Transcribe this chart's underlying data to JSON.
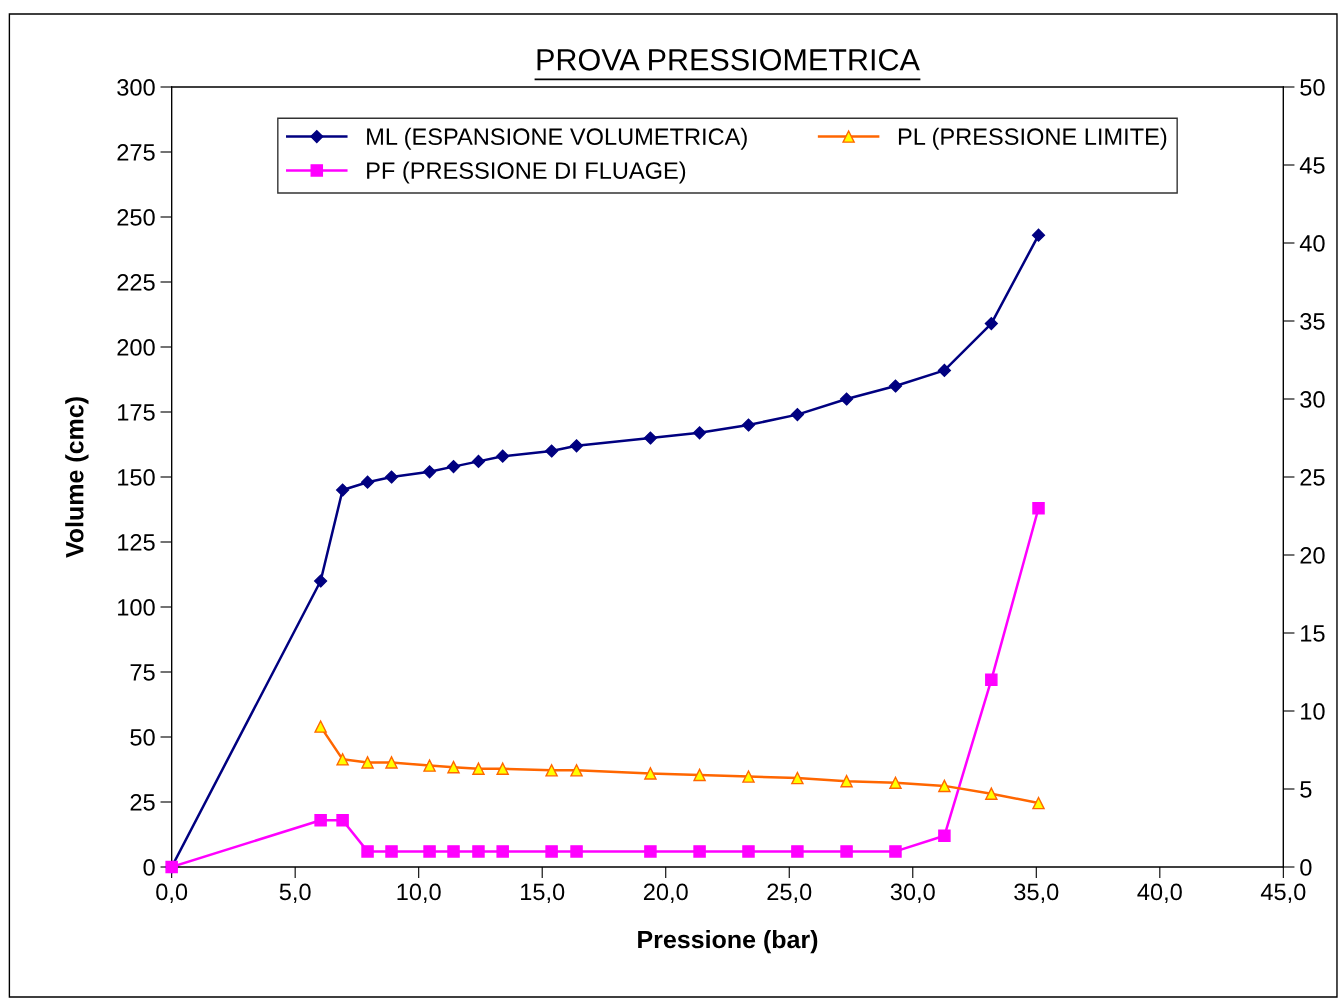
{
  "chart_data": {
    "type": "line",
    "title": "PROVA PRESSIOMETRICA",
    "xlabel": "Pressione (bar)",
    "ylabel": "Volume (cmc)",
    "x": [
      0,
      6.03,
      6.92,
      7.93,
      8.9,
      10.44,
      11.41,
      12.42,
      13.4,
      15.38,
      16.39,
      19.38,
      21.37,
      23.35,
      25.33,
      27.32,
      29.3,
      31.28,
      33.18,
      35.09
    ],
    "series": [
      {
        "name": "ML (ESPANSIONE VOLUMETRICA)",
        "color": "#000080",
        "marker": "diamond",
        "values": [
          0,
          110,
          145,
          148,
          150,
          152,
          154,
          156,
          158,
          160,
          162,
          165,
          167,
          170,
          174,
          180,
          185,
          191,
          209,
          243
        ]
      },
      {
        "name": "PF (PRESSIONE DI FLUAGE)",
        "color": "#ff00ff",
        "marker": "square",
        "axis": "y2",
        "values": [
          0,
          3,
          3,
          1,
          1,
          1,
          1,
          1,
          1,
          1,
          1,
          1,
          1,
          1,
          1,
          1,
          1,
          2,
          12,
          23
        ]
      },
      {
        "name": "PL (PRESSIONE LIMITE)",
        "color": "#ff6600",
        "marker": "triangle",
        "axis": "y2",
        "values": [
          null,
          9.0,
          6.9,
          6.7,
          6.7,
          6.5,
          6.4,
          6.3,
          6.3,
          6.2,
          6.2,
          6.0,
          5.9,
          5.8,
          5.7,
          5.5,
          5.4,
          5.2,
          4.7,
          4.1
        ]
      }
    ],
    "xlim": [
      0,
      45
    ],
    "xticks": [
      {
        "value": 0,
        "label": "0,0"
      },
      {
        "value": 5,
        "label": "5,0"
      },
      {
        "value": 10,
        "label": "10,0"
      },
      {
        "value": 15,
        "label": "15,0"
      },
      {
        "value": 20,
        "label": "20,0"
      },
      {
        "value": 25,
        "label": "25,0"
      },
      {
        "value": 30,
        "label": "30,0"
      },
      {
        "value": 35,
        "label": "35,0"
      },
      {
        "value": 40,
        "label": "40,0"
      },
      {
        "value": 45,
        "label": "45,0"
      }
    ],
    "ylim": [
      0,
      300
    ],
    "yticks": [
      0,
      25,
      50,
      75,
      100,
      125,
      150,
      175,
      200,
      225,
      250,
      275,
      300
    ],
    "y2lim": [
      0,
      50
    ],
    "y2ticks": [
      0,
      5,
      10,
      15,
      20,
      25,
      30,
      35,
      40,
      45,
      50
    ],
    "legend": "top",
    "grid": false,
    "line_style": "solid"
  }
}
